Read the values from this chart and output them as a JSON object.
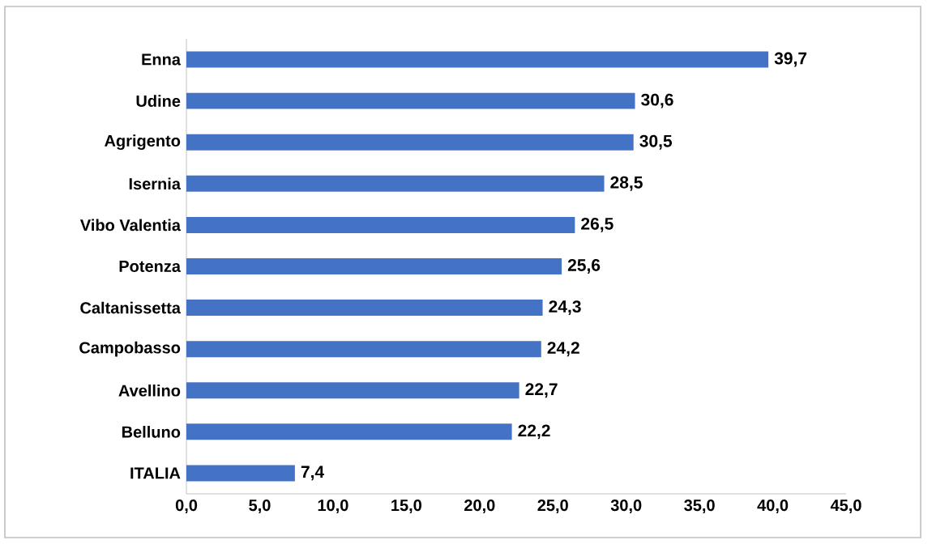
{
  "chart_data": {
    "type": "bar",
    "orientation": "horizontal",
    "categories": [
      "Enna",
      "Udine",
      "Agrigento",
      "Isernia",
      "Vibo Valentia",
      "Potenza",
      "Caltanissetta",
      "Campobasso",
      "Avellino",
      "Belluno",
      "ITALIA"
    ],
    "values": [
      39.7,
      30.6,
      30.5,
      28.5,
      26.5,
      25.6,
      24.3,
      24.2,
      22.7,
      22.2,
      7.4
    ],
    "value_labels": [
      "39,7",
      "30,6",
      "30,5",
      "28,5",
      "26,5",
      "25,6",
      "24,3",
      "24,2",
      "22,7",
      "22,2",
      "7,4"
    ],
    "color": "#4472c4",
    "xlim": [
      0,
      45
    ],
    "xticks": [
      {
        "value": 0,
        "label": "0,0"
      },
      {
        "value": 5,
        "label": "5,0"
      },
      {
        "value": 10,
        "label": "10,0"
      },
      {
        "value": 15,
        "label": "15,0"
      },
      {
        "value": 20,
        "label": "20,0"
      },
      {
        "value": 25,
        "label": "25,0"
      },
      {
        "value": 30,
        "label": "30,0"
      },
      {
        "value": 35,
        "label": "35,0"
      },
      {
        "value": 40,
        "label": "40,0"
      },
      {
        "value": 45,
        "label": "45,0"
      }
    ],
    "grid": false
  }
}
